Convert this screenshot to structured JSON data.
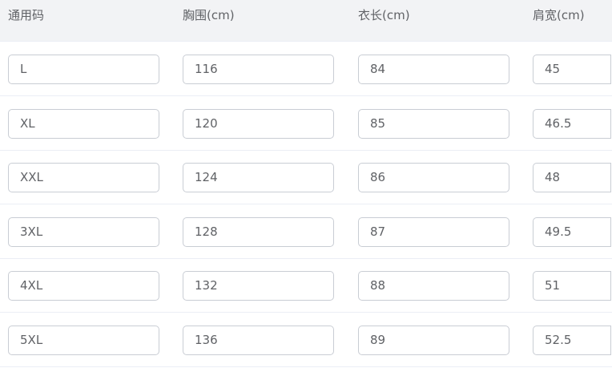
{
  "columns": [
    "通用码",
    "胸围(cm)",
    "衣长(cm)",
    "肩宽(cm)"
  ],
  "rows": [
    [
      "L",
      "116",
      "84",
      "45"
    ],
    [
      "XL",
      "120",
      "85",
      "46.5"
    ],
    [
      "XXL",
      "124",
      "86",
      "48"
    ],
    [
      "3XL",
      "128",
      "87",
      "49.5"
    ],
    [
      "4XL",
      "132",
      "88",
      "51"
    ],
    [
      "5XL",
      "136",
      "89",
      "52.5"
    ]
  ]
}
